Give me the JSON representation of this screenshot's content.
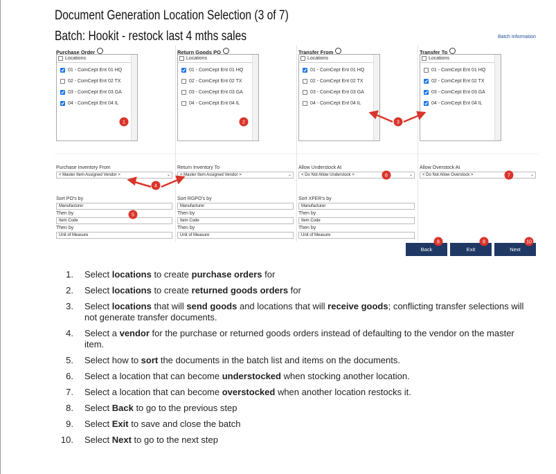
{
  "header": {
    "title": "Document Generation Location Selection (3 of 7)",
    "batch": "Batch: Hookit - restock last 4 mths sales",
    "batch_info": "Batch Information"
  },
  "columns": [
    {
      "title": "Purchase Order",
      "list_header": "Locations",
      "locations": [
        {
          "label": "01 - ComCept Ent 01 HQ",
          "checked": true
        },
        {
          "label": "02 - ComCept Ent 02 TX",
          "checked": false
        },
        {
          "label": "03 - ComCept Ent 03 GA",
          "checked": true
        },
        {
          "label": "04 - ComCept Ent 04 IL",
          "checked": true
        }
      ],
      "inventory_label": "Purchase Inventory From",
      "inventory_value": "< Master Item Assigned Vendor >",
      "sorts": [
        {
          "label": "Sort PO's by",
          "value": "Manufacturer"
        },
        {
          "label": "Then by",
          "value": "Item Code"
        },
        {
          "label": "Then by",
          "value": "Unit of Measure"
        }
      ]
    },
    {
      "title": "Return Goods PO",
      "list_header": "Locations",
      "locations": [
        {
          "label": "01 - ComCept Ent 01 HQ",
          "checked": true
        },
        {
          "label": "02 - ComCept Ent 02 TX",
          "checked": false
        },
        {
          "label": "03 - ComCept Ent 03 GA",
          "checked": false
        },
        {
          "label": "04 - ComCept Ent 04 IL",
          "checked": false
        }
      ],
      "inventory_label": "Return Inventory To",
      "inventory_value": "< Master Item Assigned Vendor >",
      "sorts": [
        {
          "label": "Sort RGPO's by",
          "value": "Manufacturer"
        },
        {
          "label": "Then by",
          "value": "Item Code"
        },
        {
          "label": "Then by",
          "value": "Unit of Measure"
        }
      ]
    },
    {
      "title": "Transfer From",
      "list_header": "Locations",
      "locations": [
        {
          "label": "01 - ComCept Ent 01 HQ",
          "checked": true
        },
        {
          "label": "02 - ComCept Ent 02 TX",
          "checked": false
        },
        {
          "label": "03 - ComCept Ent 03 GA",
          "checked": false
        },
        {
          "label": "04 - ComCept Ent 04 IL",
          "checked": false
        }
      ],
      "inventory_label": "Allow Understock At",
      "inventory_value": "< Do Not Allow Understock >",
      "sorts": [
        {
          "label": "Sort XFER's by",
          "value": "Manufacturer"
        },
        {
          "label": "Then by",
          "value": "Item Code"
        },
        {
          "label": "Then by",
          "value": "Unit of Measure"
        }
      ]
    },
    {
      "title": "Transfer To",
      "list_header": "Locations",
      "locations": [
        {
          "label": "01 - ComCept Ent 01 HQ",
          "checked": false
        },
        {
          "label": "02 - ComCept Ent 02 TX",
          "checked": true
        },
        {
          "label": "03 - ComCept Ent 03 GA",
          "checked": true
        },
        {
          "label": "04 - ComCept Ent 04 IL",
          "checked": true
        }
      ],
      "inventory_label": "Allow Overstock At",
      "inventory_value": "< Do Not Allow Overstock >",
      "sorts": []
    }
  ],
  "buttons": [
    "Back",
    "Exit",
    "Next"
  ],
  "callouts": [
    1,
    2,
    3,
    4,
    5,
    6,
    7,
    8,
    9,
    10
  ],
  "instructions": [
    {
      "marker": "1.",
      "parts": [
        {
          "t": "Select ",
          "b": false
        },
        {
          "t": "locations",
          "b": true
        },
        {
          "t": " to create ",
          "b": false
        },
        {
          "t": "purchase orders",
          "b": true
        },
        {
          "t": " for",
          "b": false
        }
      ]
    },
    {
      "marker": "2.",
      "parts": [
        {
          "t": "Select ",
          "b": false
        },
        {
          "t": "locations",
          "b": true
        },
        {
          "t": " to create ",
          "b": false
        },
        {
          "t": "returned goods orders",
          "b": true
        },
        {
          "t": " for",
          "b": false
        }
      ]
    },
    {
      "marker": "3.",
      "parts": [
        {
          "t": "Select ",
          "b": false
        },
        {
          "t": "locations",
          "b": true
        },
        {
          "t": " that will ",
          "b": false
        },
        {
          "t": "send goods",
          "b": true
        },
        {
          "t": " and locations that will ",
          "b": false
        },
        {
          "t": "receive goods",
          "b": true
        },
        {
          "t": "; conflicting transfer selections will not generate transfer documents.",
          "b": false
        }
      ]
    },
    {
      "marker": "4.",
      "parts": [
        {
          "t": "Select a ",
          "b": false
        },
        {
          "t": "vendor",
          "b": true
        },
        {
          "t": " for the purchase or returned goods orders instead of defaulting to the vendor on the master item.",
          "b": false
        }
      ]
    },
    {
      "marker": "5.",
      "parts": [
        {
          "t": "Select how to ",
          "b": false
        },
        {
          "t": "sort",
          "b": true
        },
        {
          "t": " the documents in the batch list and items on the documents.",
          "b": false
        }
      ]
    },
    {
      "marker": "6.",
      "parts": [
        {
          "t": "Select a location that can become ",
          "b": false
        },
        {
          "t": "understocked",
          "b": true
        },
        {
          "t": " when stocking another location.",
          "b": false
        }
      ]
    },
    {
      "marker": "7.",
      "parts": [
        {
          "t": "Select a location that can become ",
          "b": false
        },
        {
          "t": "overstocked",
          "b": true
        },
        {
          "t": " when another location restocks it.",
          "b": false
        }
      ]
    },
    {
      "marker": "8.",
      "parts": [
        {
          "t": "Select ",
          "b": false
        },
        {
          "t": "Back",
          "b": true
        },
        {
          "t": " to go to the previous step",
          "b": false
        }
      ]
    },
    {
      "marker": "9.",
      "parts": [
        {
          "t": "Select ",
          "b": false
        },
        {
          "t": "Exit",
          "b": true
        },
        {
          "t": " to save and close the batch",
          "b": false
        }
      ]
    },
    {
      "marker": "10.",
      "parts": [
        {
          "t": "Select ",
          "b": false
        },
        {
          "t": "Next",
          "b": true
        },
        {
          "t": " to go to the next step",
          "b": false
        }
      ]
    }
  ]
}
